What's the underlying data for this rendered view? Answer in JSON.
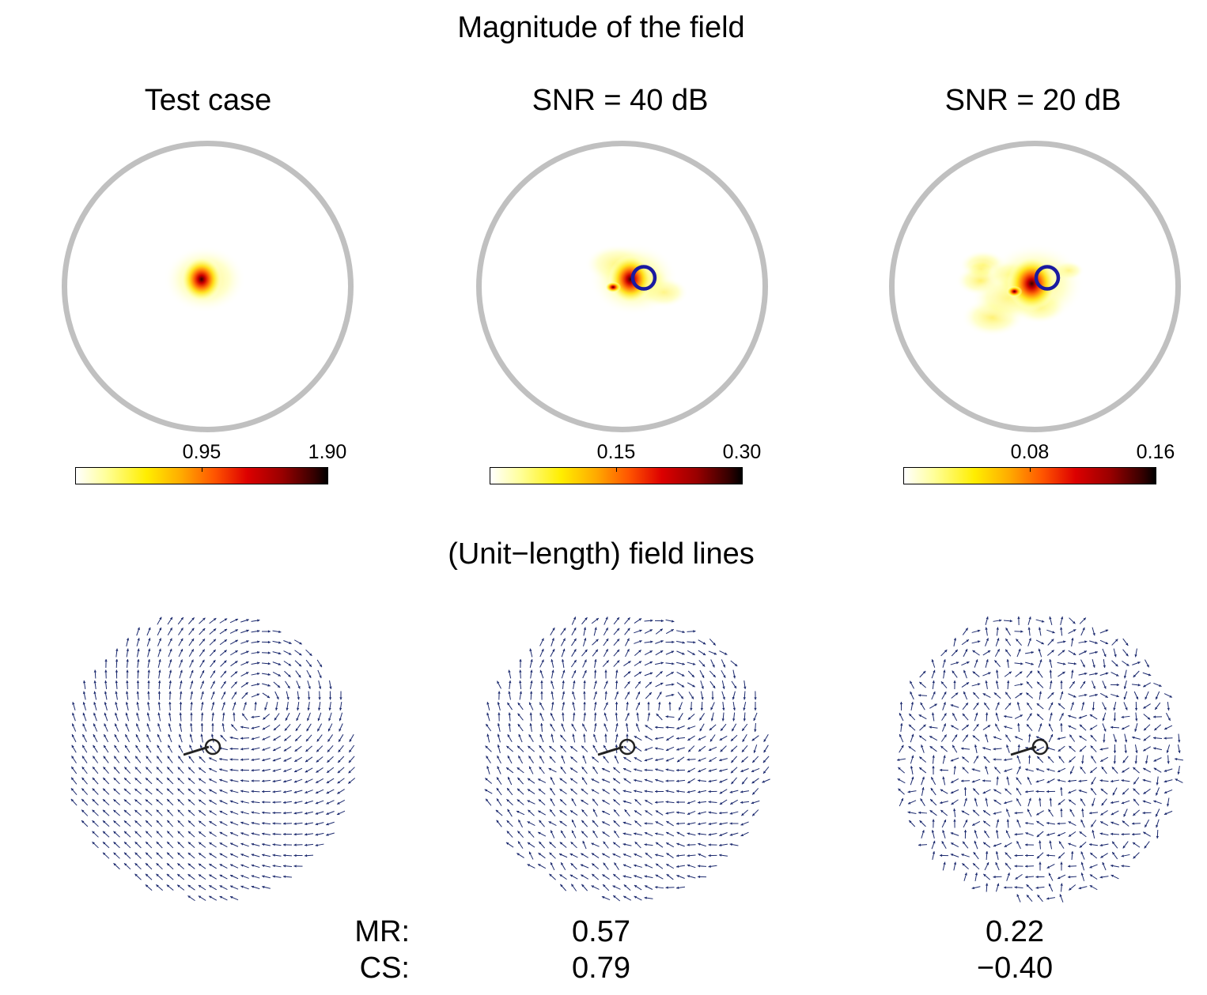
{
  "figure": {
    "top_title": "Magnitude of the field",
    "bottom_title": "(Unit−length) field lines"
  },
  "panels": [
    {
      "title": "Test case",
      "colorbar": {
        "mid_label": "0.95",
        "max_label": "1.90",
        "min": 0,
        "mid": 0.95,
        "max": 1.9
      },
      "blob": {
        "cx": -0.02,
        "cy": -0.05,
        "spread": 0.22
      },
      "noise": 0.0,
      "show_estimate": false
    },
    {
      "title": "SNR = 40 dB",
      "colorbar": {
        "mid_label": "0.15",
        "max_label": "0.30",
        "min": 0,
        "mid": 0.15,
        "max": 0.3
      },
      "blob": {
        "cx": 0.08,
        "cy": -0.05,
        "spread": 0.28
      },
      "noise": 0.35,
      "show_estimate": true
    },
    {
      "title": "SNR = 20 dB",
      "colorbar": {
        "mid_label": "0.08",
        "max_label": "0.16",
        "min": 0,
        "mid": 0.08,
        "max": 0.16
      },
      "blob": {
        "cx": 0.0,
        "cy": -0.02,
        "spread": 0.38
      },
      "noise": 1.2,
      "show_estimate": true
    }
  ],
  "metrics": {
    "mr_label": "MR:",
    "cs_label": "CS:",
    "mr_values": [
      "0.57",
      "0.22"
    ],
    "cs_values": [
      "0.79",
      "−0.40"
    ]
  },
  "colors": {
    "head_outline": "#c0c0c0",
    "estimate_circle": "#1a1aa0",
    "arrow": "#1c2a6e",
    "dipole": "#222222"
  }
}
